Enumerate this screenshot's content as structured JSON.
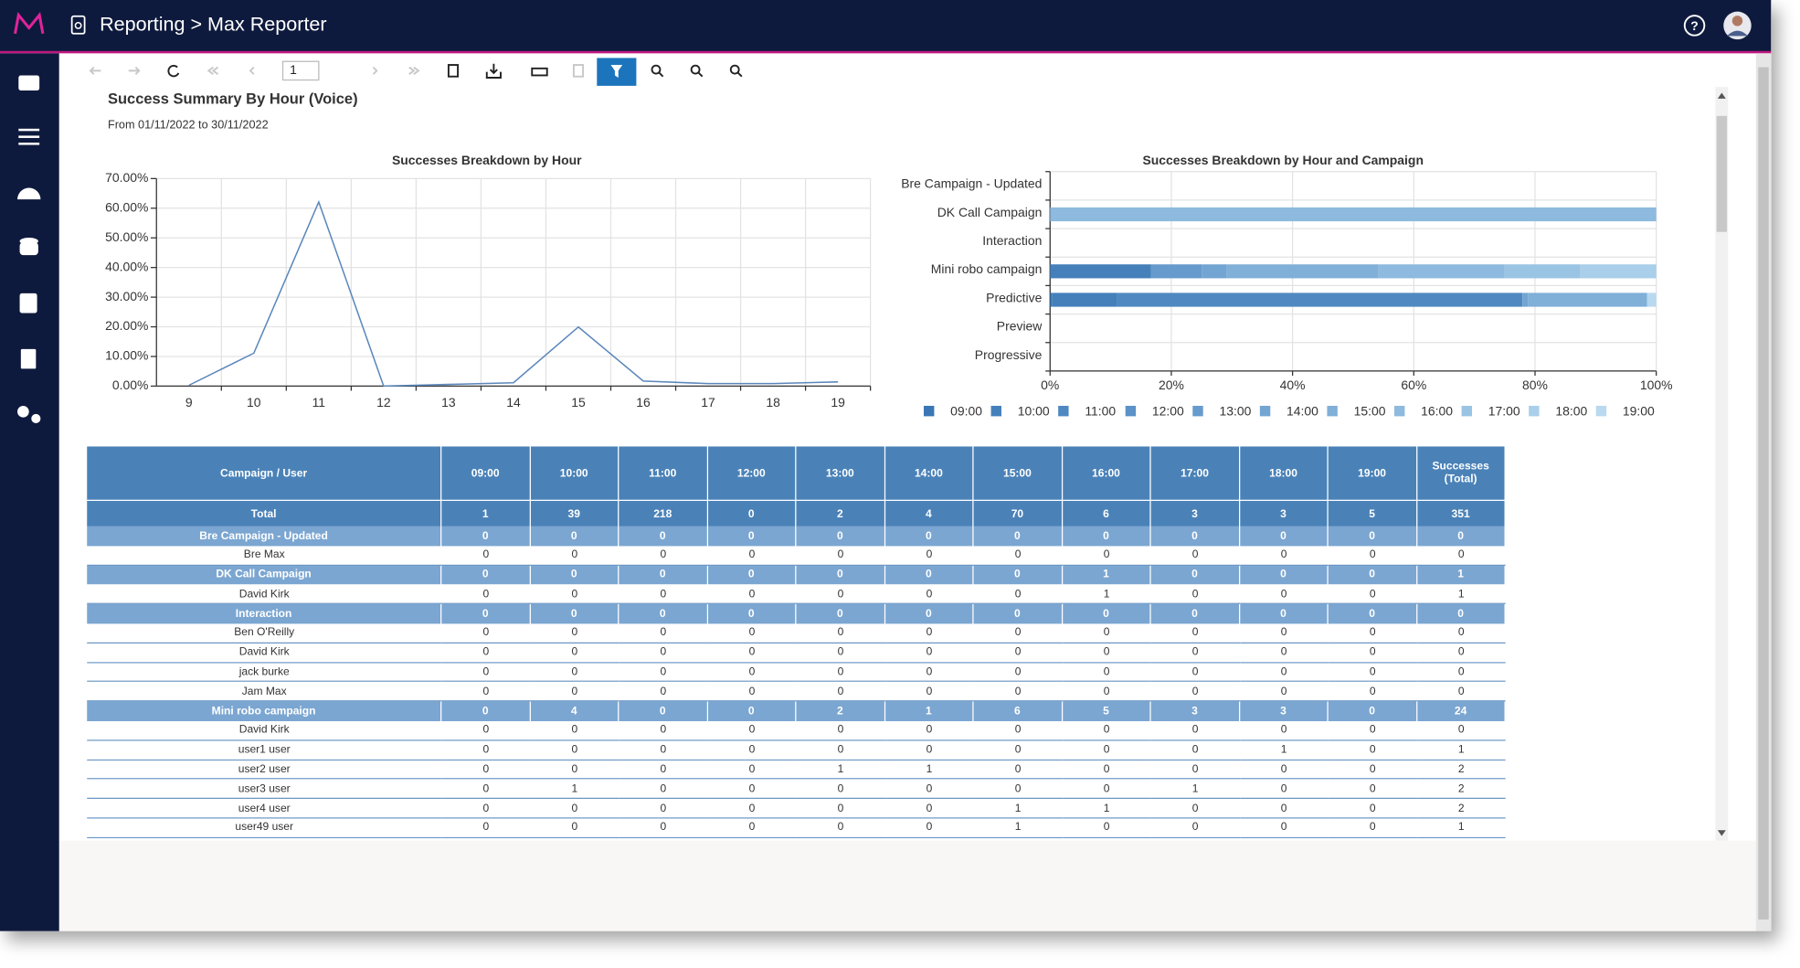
{
  "header": {
    "title": "Reporting > Max Reporter"
  },
  "toolbar": {
    "page": 1
  },
  "report": {
    "title": "Success Summary By Hour (Voice)",
    "subtitle": "From 01/11/2022 to 30/11/2022"
  },
  "chart_data": [
    {
      "type": "line",
      "title": "Successes Breakdown by Hour",
      "categories": [
        "9",
        "10",
        "11",
        "12",
        "13",
        "14",
        "15",
        "16",
        "17",
        "18",
        "19"
      ],
      "values": [
        0.28,
        11.11,
        62.11,
        0,
        0.57,
        1.14,
        19.94,
        1.71,
        0.85,
        0.85,
        1.42
      ],
      "color": "#5b87bb",
      "ylim": [
        0,
        70
      ],
      "yticks": [
        {
          "value": 0,
          "label": "0.00%"
        },
        {
          "value": 10,
          "label": "10.00%"
        },
        {
          "value": 20,
          "label": "20.00%"
        },
        {
          "value": 30,
          "label": "30.00%"
        },
        {
          "value": 40,
          "label": "40.00%"
        },
        {
          "value": 50,
          "label": "50.00%"
        },
        {
          "value": 60,
          "label": "60.00%"
        },
        {
          "value": 70,
          "label": "70.00%"
        }
      ],
      "grid": true
    },
    {
      "type": "bar",
      "orientation": "horizontal",
      "stacked": true,
      "title": "Successes Breakdown by Hour and Campaign",
      "categories": [
        "Bre Campaign - Updated",
        "DK Call Campaign",
        "Interaction",
        "Mini robo campaign",
        "Predictive",
        "Preview",
        "Progressive"
      ],
      "series": [
        {
          "name": "09:00",
          "color": "#3b77b5",
          "values": [
            0,
            0,
            0,
            0,
            0.31,
            0,
            0
          ]
        },
        {
          "name": "10:00",
          "color": "#4580bb",
          "values": [
            0,
            0,
            0,
            16.67,
            10.74,
            0,
            0
          ]
        },
        {
          "name": "11:00",
          "color": "#5089c1",
          "values": [
            0,
            0,
            0,
            0,
            66.87,
            0,
            0
          ]
        },
        {
          "name": "12:00",
          "color": "#5b92c7",
          "values": [
            0,
            0,
            0,
            0,
            0,
            0,
            0
          ]
        },
        {
          "name": "13:00",
          "color": "#679bcd",
          "values": [
            0,
            0,
            0,
            8.33,
            0,
            0,
            0
          ]
        },
        {
          "name": "14:00",
          "color": "#73a5d3",
          "values": [
            0,
            0,
            0,
            4.17,
            0.92,
            0,
            0
          ]
        },
        {
          "name": "15:00",
          "color": "#80afd8",
          "values": [
            0,
            0,
            0,
            25,
            19.63,
            0,
            0
          ]
        },
        {
          "name": "16:00",
          "color": "#8dbade",
          "values": [
            0,
            100,
            0,
            20.83,
            0,
            0,
            0
          ]
        },
        {
          "name": "17:00",
          "color": "#9ac4e4",
          "values": [
            0,
            0,
            0,
            12.5,
            0,
            0,
            0
          ]
        },
        {
          "name": "18:00",
          "color": "#a9cfea",
          "values": [
            0,
            0,
            0,
            12.5,
            0,
            0,
            0
          ]
        },
        {
          "name": "19:00",
          "color": "#b9d9f0",
          "values": [
            0,
            0,
            0,
            0,
            1.53,
            0,
            0
          ]
        }
      ],
      "xlim": [
        0,
        100
      ],
      "xticks": [
        {
          "value": 0,
          "label": "0%"
        },
        {
          "value": 20,
          "label": "20%"
        },
        {
          "value": 40,
          "label": "40%"
        },
        {
          "value": 60,
          "label": "60%"
        },
        {
          "value": 80,
          "label": "80%"
        },
        {
          "value": 100,
          "label": "100%"
        }
      ],
      "grid": true,
      "legend": "bottom"
    }
  ],
  "table": {
    "columns": [
      "Campaign / User",
      "09:00",
      "10:00",
      "11:00",
      "12:00",
      "13:00",
      "14:00",
      "15:00",
      "16:00",
      "17:00",
      "18:00",
      "19:00",
      "Successes (Total)"
    ],
    "rows": [
      {
        "label": "Total",
        "kind": "total",
        "values": [
          1,
          39,
          218,
          0,
          2,
          4,
          70,
          6,
          3,
          3,
          5,
          351
        ]
      },
      {
        "label": "Bre Campaign - Updated",
        "kind": "group",
        "values": [
          0,
          0,
          0,
          0,
          0,
          0,
          0,
          0,
          0,
          0,
          0,
          0
        ]
      },
      {
        "label": "Bre Max",
        "kind": "user",
        "values": [
          0,
          0,
          0,
          0,
          0,
          0,
          0,
          0,
          0,
          0,
          0,
          0
        ]
      },
      {
        "label": "DK Call Campaign",
        "kind": "group",
        "values": [
          0,
          0,
          0,
          0,
          0,
          0,
          0,
          1,
          0,
          0,
          0,
          1
        ]
      },
      {
        "label": "David Kirk",
        "kind": "user",
        "values": [
          0,
          0,
          0,
          0,
          0,
          0,
          0,
          1,
          0,
          0,
          0,
          1
        ]
      },
      {
        "label": "Interaction",
        "kind": "group",
        "values": [
          0,
          0,
          0,
          0,
          0,
          0,
          0,
          0,
          0,
          0,
          0,
          0
        ]
      },
      {
        "label": "Ben O'Reilly",
        "kind": "user",
        "values": [
          0,
          0,
          0,
          0,
          0,
          0,
          0,
          0,
          0,
          0,
          0,
          0
        ]
      },
      {
        "label": "David Kirk",
        "kind": "user",
        "values": [
          0,
          0,
          0,
          0,
          0,
          0,
          0,
          0,
          0,
          0,
          0,
          0
        ]
      },
      {
        "label": "jack burke",
        "kind": "user",
        "values": [
          0,
          0,
          0,
          0,
          0,
          0,
          0,
          0,
          0,
          0,
          0,
          0
        ]
      },
      {
        "label": "Jam Max",
        "kind": "user",
        "values": [
          0,
          0,
          0,
          0,
          0,
          0,
          0,
          0,
          0,
          0,
          0,
          0
        ]
      },
      {
        "label": "Mini robo campaign",
        "kind": "group",
        "values": [
          0,
          4,
          0,
          0,
          2,
          1,
          6,
          5,
          3,
          3,
          0,
          24
        ]
      },
      {
        "label": "David Kirk",
        "kind": "user",
        "values": [
          0,
          0,
          0,
          0,
          0,
          0,
          0,
          0,
          0,
          0,
          0,
          0
        ]
      },
      {
        "label": "user1 user",
        "kind": "user",
        "values": [
          0,
          0,
          0,
          0,
          0,
          0,
          0,
          0,
          0,
          1,
          0,
          1
        ]
      },
      {
        "label": "user2 user",
        "kind": "user",
        "values": [
          0,
          0,
          0,
          0,
          1,
          1,
          0,
          0,
          0,
          0,
          0,
          2
        ]
      },
      {
        "label": "user3 user",
        "kind": "user",
        "values": [
          0,
          1,
          0,
          0,
          0,
          0,
          0,
          0,
          1,
          0,
          0,
          2
        ]
      },
      {
        "label": "user4 user",
        "kind": "user",
        "values": [
          0,
          0,
          0,
          0,
          0,
          0,
          1,
          1,
          0,
          0,
          0,
          2
        ]
      },
      {
        "label": "user49 user",
        "kind": "user",
        "values": [
          0,
          0,
          0,
          0,
          0,
          0,
          1,
          0,
          0,
          0,
          0,
          1
        ]
      }
    ]
  }
}
